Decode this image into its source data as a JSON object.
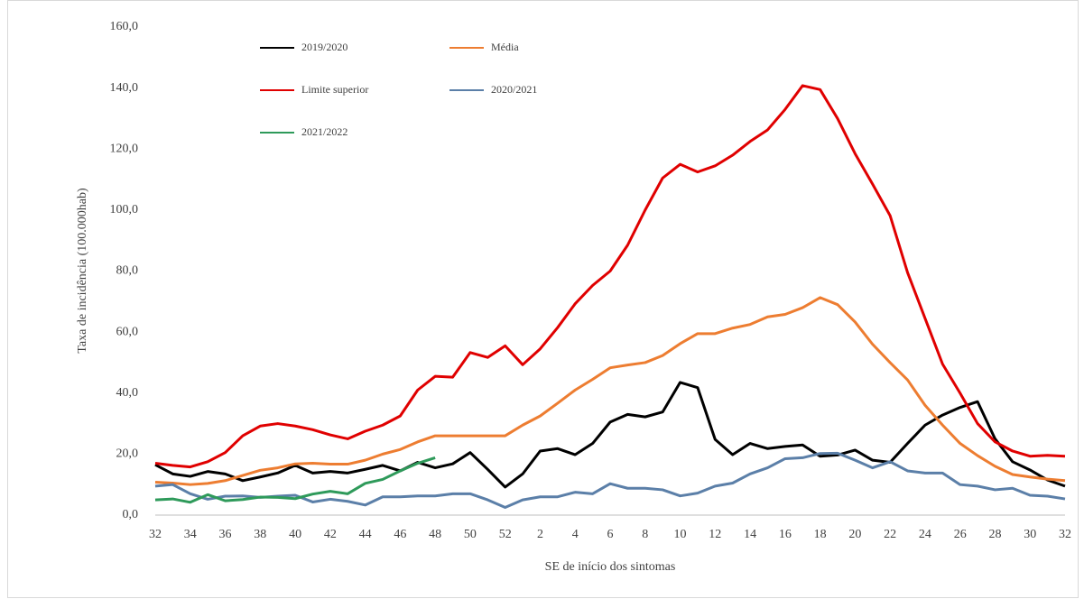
{
  "chart_data": {
    "type": "line",
    "y_label": "Taxa de incidência (100.000hab)",
    "x_label": "SE de início dos sintomas",
    "categories": [
      "32",
      null,
      "34",
      null,
      "36",
      null,
      "38",
      null,
      "40",
      null,
      "42",
      null,
      "44",
      null,
      "46",
      null,
      "48",
      null,
      "50",
      null,
      "52",
      null,
      "2",
      null,
      "4",
      null,
      "6",
      null,
      "8",
      null,
      "10",
      null,
      "12",
      null,
      "14",
      null,
      "16",
      null,
      "18",
      null,
      "20",
      null,
      "22",
      null,
      "24",
      null,
      "26",
      null,
      "28",
      null,
      "30",
      null,
      "32"
    ],
    "ylim": [
      0,
      160
    ],
    "yticks": [
      {
        "value": 0,
        "label": "0,0"
      },
      {
        "value": 20,
        "label": "20,0"
      },
      {
        "value": 40,
        "label": "40,0"
      },
      {
        "value": 60,
        "label": "60,0"
      },
      {
        "value": 80,
        "label": "80,0"
      },
      {
        "value": 100,
        "label": "100,0"
      },
      {
        "value": 120,
        "label": "120,0"
      },
      {
        "value": 140,
        "label": "140,0"
      },
      {
        "value": 160,
        "label": "160,0"
      }
    ],
    "grid": false,
    "legend": "top-left",
    "series": [
      {
        "name": "2019/2020",
        "color": "#000000",
        "values": [
          16.5,
          13.5,
          12.7,
          14.3,
          13.5,
          11.3,
          12.5,
          13.8,
          16.3,
          13.8,
          14.3,
          13.8,
          15,
          16.3,
          14.5,
          17.3,
          15.5,
          16.8,
          20.5,
          15,
          9.2,
          13.5,
          21,
          21.8,
          19.8,
          23.5,
          30.5,
          33,
          32.2,
          33.8,
          43.5,
          41.8,
          24.8,
          19.8,
          23.5,
          21.8,
          22.5,
          23,
          19.3,
          19.7,
          21.3,
          18,
          17.3,
          23.5,
          29.5,
          32.8,
          35.3,
          37.2,
          25,
          17.5,
          14.8,
          11.5,
          9.5
        ]
      },
      {
        "name": "Média",
        "color": "#ed7d31",
        "values": [
          10.8,
          10.5,
          10,
          10.4,
          11.3,
          13,
          14.7,
          15.5,
          16.8,
          17,
          16.7,
          16.7,
          18,
          20,
          21.5,
          24,
          26,
          26,
          26,
          26,
          26,
          29.5,
          32.5,
          36.7,
          41,
          44.5,
          48.3,
          49.2,
          50,
          52.3,
          56.2,
          59.5,
          59.5,
          61.3,
          62.5,
          65,
          65.8,
          68,
          71.3,
          69,
          63.3,
          56,
          50,
          44.3,
          36,
          29.5,
          23.5,
          19.5,
          16,
          13.3,
          12.5,
          11.8,
          11.3
        ]
      },
      {
        "name": "Limite superior",
        "color": "#e00000",
        "values": [
          17,
          16.3,
          15.8,
          17.5,
          20.5,
          26,
          29.2,
          30,
          29.2,
          28,
          26.3,
          25,
          27.5,
          29.5,
          32.5,
          41,
          45.5,
          45.2,
          53.3,
          51.7,
          55.5,
          49.3,
          54.5,
          61.5,
          69.3,
          75.3,
          80,
          88.5,
          100,
          110.5,
          115,
          112.5,
          114.5,
          118,
          122.5,
          126.3,
          133,
          140.8,
          139.5,
          130,
          118.5,
          108.5,
          98.2,
          79.5,
          64.5,
          49.5,
          40,
          30,
          24,
          21,
          19.3,
          19.6,
          19.3
        ]
      },
      {
        "name": "2020/2021",
        "color": "#5b7fa8",
        "values": [
          9.5,
          10,
          7,
          5.2,
          6.2,
          6.3,
          5.8,
          6.2,
          6.5,
          4.3,
          5.2,
          4.5,
          3.3,
          6,
          6,
          6.3,
          6.3,
          7,
          7,
          5,
          2.5,
          5,
          6,
          6,
          7.5,
          7,
          10.3,
          8.8,
          8.8,
          8.3,
          6.3,
          7.2,
          9.5,
          10.5,
          13.5,
          15.5,
          18.5,
          18.8,
          20.2,
          20.3,
          18,
          15.5,
          17.5,
          14.5,
          13.8,
          13.8,
          10,
          9.5,
          8.3,
          8.8,
          6.5,
          6.2,
          5.3
        ]
      },
      {
        "name": "2021/2022",
        "color": "#2e9a5a",
        "values": [
          5,
          5.3,
          4.2,
          6.7,
          4.7,
          5.1,
          5.9,
          5.8,
          5.4,
          6.9,
          7.8,
          7,
          10.4,
          11.7,
          14.5,
          17,
          18.8,
          null,
          null,
          null,
          null,
          null,
          null,
          null,
          null,
          null,
          null,
          null,
          null,
          null,
          null,
          null,
          null,
          null,
          null,
          null,
          null,
          null,
          null,
          null,
          null,
          null,
          null,
          null,
          null,
          null,
          null,
          null,
          null,
          null,
          null,
          null,
          null
        ]
      }
    ]
  }
}
